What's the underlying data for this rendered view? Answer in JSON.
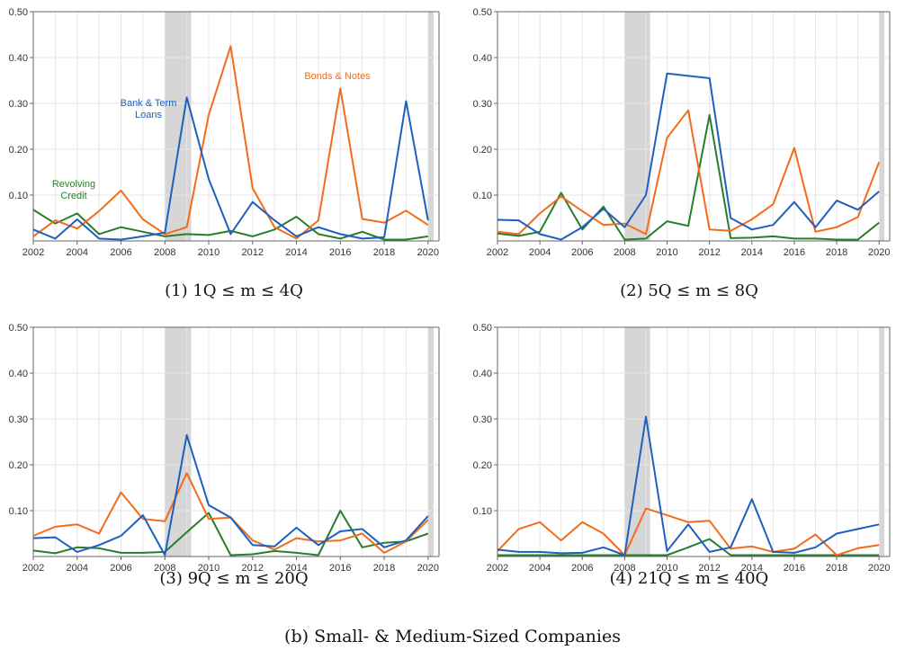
{
  "figure_caption": "(b) Small- & Medium-Sized Companies",
  "colors": {
    "bank_term_loans": "#1f5fbf",
    "bonds_notes": "#f26c1a",
    "revolving_credit": "#2a7d2a",
    "recession_shading": "#d6d6d6",
    "grid": "#e6e6e6",
    "axis": "#666666"
  },
  "chart_data": [
    {
      "type": "line",
      "caption": "(1) 1Q ≤ m ≤ 4Q",
      "x": [
        2002,
        2003,
        2004,
        2005,
        2006,
        2007,
        2008,
        2009,
        2010,
        2011,
        2012,
        2013,
        2014,
        2015,
        2016,
        2017,
        2018,
        2019,
        2020
      ],
      "x_ticks": [
        "2002",
        "2004",
        "2006",
        "2008",
        "2010",
        "2012",
        "2014",
        "2016",
        "2018",
        "2020"
      ],
      "y_ticks": [
        "0.10",
        "0.20",
        "0.30",
        "0.40",
        "0.50"
      ],
      "ylim": [
        0,
        0.5
      ],
      "xlim": [
        2002,
        2020.5
      ],
      "shaded_periods": [
        [
          2008,
          2009.2
        ],
        [
          2020,
          2020.25
        ]
      ],
      "grid": true,
      "series": [
        {
          "key": "bank_term_loans",
          "values": [
            0.025,
            0.005,
            0.047,
            0.005,
            0.003,
            0.01,
            0.018,
            0.313,
            0.135,
            0.015,
            0.085,
            0.045,
            0.01,
            0.03,
            0.015,
            0.005,
            0.008,
            0.305,
            0.045
          ]
        },
        {
          "key": "bonds_notes",
          "values": [
            0.01,
            0.045,
            0.027,
            0.065,
            0.11,
            0.047,
            0.015,
            0.03,
            0.275,
            0.425,
            0.115,
            0.03,
            0.005,
            0.045,
            0.333,
            0.048,
            0.04,
            0.066,
            0.035
          ]
        },
        {
          "key": "revolving_credit",
          "values": [
            0.068,
            0.038,
            0.06,
            0.015,
            0.03,
            0.02,
            0.01,
            0.015,
            0.013,
            0.022,
            0.01,
            0.025,
            0.053,
            0.015,
            0.005,
            0.02,
            0.003,
            0.003,
            0.01
          ]
        }
      ],
      "annotations": [
        {
          "key": "bank_term_loans",
          "lines": [
            "Bank & Term",
            "Loans"
          ]
        },
        {
          "key": "bonds_notes",
          "lines": [
            "Bonds & Notes"
          ]
        },
        {
          "key": "revolving_credit",
          "lines": [
            "Revolving",
            "Credit"
          ]
        }
      ]
    },
    {
      "type": "line",
      "caption": "(2) 5Q ≤ m ≤ 8Q",
      "x": [
        2002,
        2003,
        2004,
        2005,
        2006,
        2007,
        2008,
        2009,
        2010,
        2011,
        2012,
        2013,
        2014,
        2015,
        2016,
        2017,
        2018,
        2019,
        2020
      ],
      "x_ticks": [
        "2002",
        "2004",
        "2006",
        "2008",
        "2010",
        "2012",
        "2014",
        "2016",
        "2018",
        "2020"
      ],
      "y_ticks": [
        "0.10",
        "0.20",
        "0.30",
        "0.40",
        "0.50"
      ],
      "ylim": [
        0,
        0.5
      ],
      "xlim": [
        2002,
        2020.5
      ],
      "shaded_periods": [
        [
          2008,
          2009.2
        ],
        [
          2020,
          2020.25
        ]
      ],
      "grid": true,
      "series": [
        {
          "key": "bank_term_loans",
          "values": [
            0.046,
            0.045,
            0.015,
            0.003,
            0.03,
            0.07,
            0.03,
            0.1,
            0.365,
            0.36,
            0.355,
            0.05,
            0.025,
            0.035,
            0.085,
            0.03,
            0.088,
            0.068,
            0.108
          ]
        },
        {
          "key": "bonds_notes",
          "values": [
            0.02,
            0.015,
            0.06,
            0.097,
            0.065,
            0.035,
            0.038,
            0.015,
            0.225,
            0.285,
            0.025,
            0.022,
            0.047,
            0.08,
            0.203,
            0.02,
            0.03,
            0.052,
            0.172
          ]
        },
        {
          "key": "revolving_credit",
          "values": [
            0.016,
            0.011,
            0.02,
            0.105,
            0.025,
            0.075,
            0.003,
            0.005,
            0.043,
            0.033,
            0.275,
            0.006,
            0.007,
            0.01,
            0.005,
            0.005,
            0.003,
            0.003,
            0.04
          ]
        }
      ]
    },
    {
      "type": "line",
      "caption": "(3) 9Q ≤ m ≤ 20Q",
      "x": [
        2002,
        2003,
        2004,
        2005,
        2006,
        2007,
        2008,
        2009,
        2010,
        2011,
        2012,
        2013,
        2014,
        2015,
        2016,
        2017,
        2018,
        2019,
        2020
      ],
      "x_ticks": [
        "2002",
        "2004",
        "2006",
        "2008",
        "2010",
        "2012",
        "2014",
        "2016",
        "2018",
        "2020"
      ],
      "y_ticks": [
        "0.10",
        "0.20",
        "0.30",
        "0.40",
        "0.50"
      ],
      "ylim": [
        0,
        0.5
      ],
      "xlim": [
        2002,
        2020.5
      ],
      "shaded_periods": [
        [
          2008,
          2009.2
        ],
        [
          2020,
          2020.25
        ]
      ],
      "grid": true,
      "series": [
        {
          "key": "bank_term_loans",
          "values": [
            0.04,
            0.042,
            0.01,
            0.025,
            0.045,
            0.09,
            0.003,
            0.265,
            0.112,
            0.085,
            0.025,
            0.022,
            0.063,
            0.025,
            0.055,
            0.06,
            0.02,
            0.035,
            0.088
          ]
        },
        {
          "key": "bonds_notes",
          "values": [
            0.045,
            0.065,
            0.07,
            0.05,
            0.14,
            0.082,
            0.077,
            0.182,
            0.082,
            0.085,
            0.035,
            0.015,
            0.04,
            0.033,
            0.035,
            0.05,
            0.008,
            0.033,
            0.08
          ]
        },
        {
          "key": "revolving_credit",
          "values": [
            0.013,
            0.007,
            0.02,
            0.018,
            0.008,
            0.008,
            0.01,
            0.053,
            0.095,
            0.003,
            0.005,
            0.012,
            0.008,
            0.003,
            0.1,
            0.02,
            0.03,
            0.033,
            0.05
          ]
        }
      ]
    },
    {
      "type": "line",
      "caption": "(4) 21Q ≤ m ≤ 40Q",
      "x": [
        2002,
        2003,
        2004,
        2005,
        2006,
        2007,
        2008,
        2009,
        2010,
        2011,
        2012,
        2013,
        2014,
        2015,
        2016,
        2017,
        2018,
        2019,
        2020
      ],
      "x_ticks": [
        "2002",
        "2004",
        "2006",
        "2008",
        "2010",
        "2012",
        "2014",
        "2016",
        "2018",
        "2020"
      ],
      "y_ticks": [
        "0.10",
        "0.20",
        "0.30",
        "0.40",
        "0.50"
      ],
      "ylim": [
        0,
        0.5
      ],
      "xlim": [
        2002,
        2020.5
      ],
      "shaded_periods": [
        [
          2008,
          2009.2
        ],
        [
          2020,
          2020.25
        ]
      ],
      "grid": true,
      "series": [
        {
          "key": "bank_term_loans",
          "values": [
            0.015,
            0.01,
            0.01,
            0.007,
            0.008,
            0.02,
            0.003,
            0.305,
            0.012,
            0.07,
            0.01,
            0.02,
            0.125,
            0.01,
            0.008,
            0.02,
            0.05,
            0.06,
            0.07
          ]
        },
        {
          "key": "bonds_notes",
          "values": [
            0.012,
            0.06,
            0.075,
            0.035,
            0.075,
            0.05,
            0.003,
            0.105,
            0.09,
            0.075,
            0.078,
            0.017,
            0.022,
            0.01,
            0.017,
            0.048,
            0.003,
            0.018,
            0.025
          ]
        },
        {
          "key": "revolving_credit",
          "values": [
            0.003,
            0.003,
            0.003,
            0.003,
            0.003,
            0.003,
            0.003,
            0.003,
            0.003,
            0.02,
            0.038,
            0.003,
            0.003,
            0.003,
            0.003,
            0.003,
            0.003,
            0.003,
            0.003
          ]
        }
      ]
    }
  ]
}
